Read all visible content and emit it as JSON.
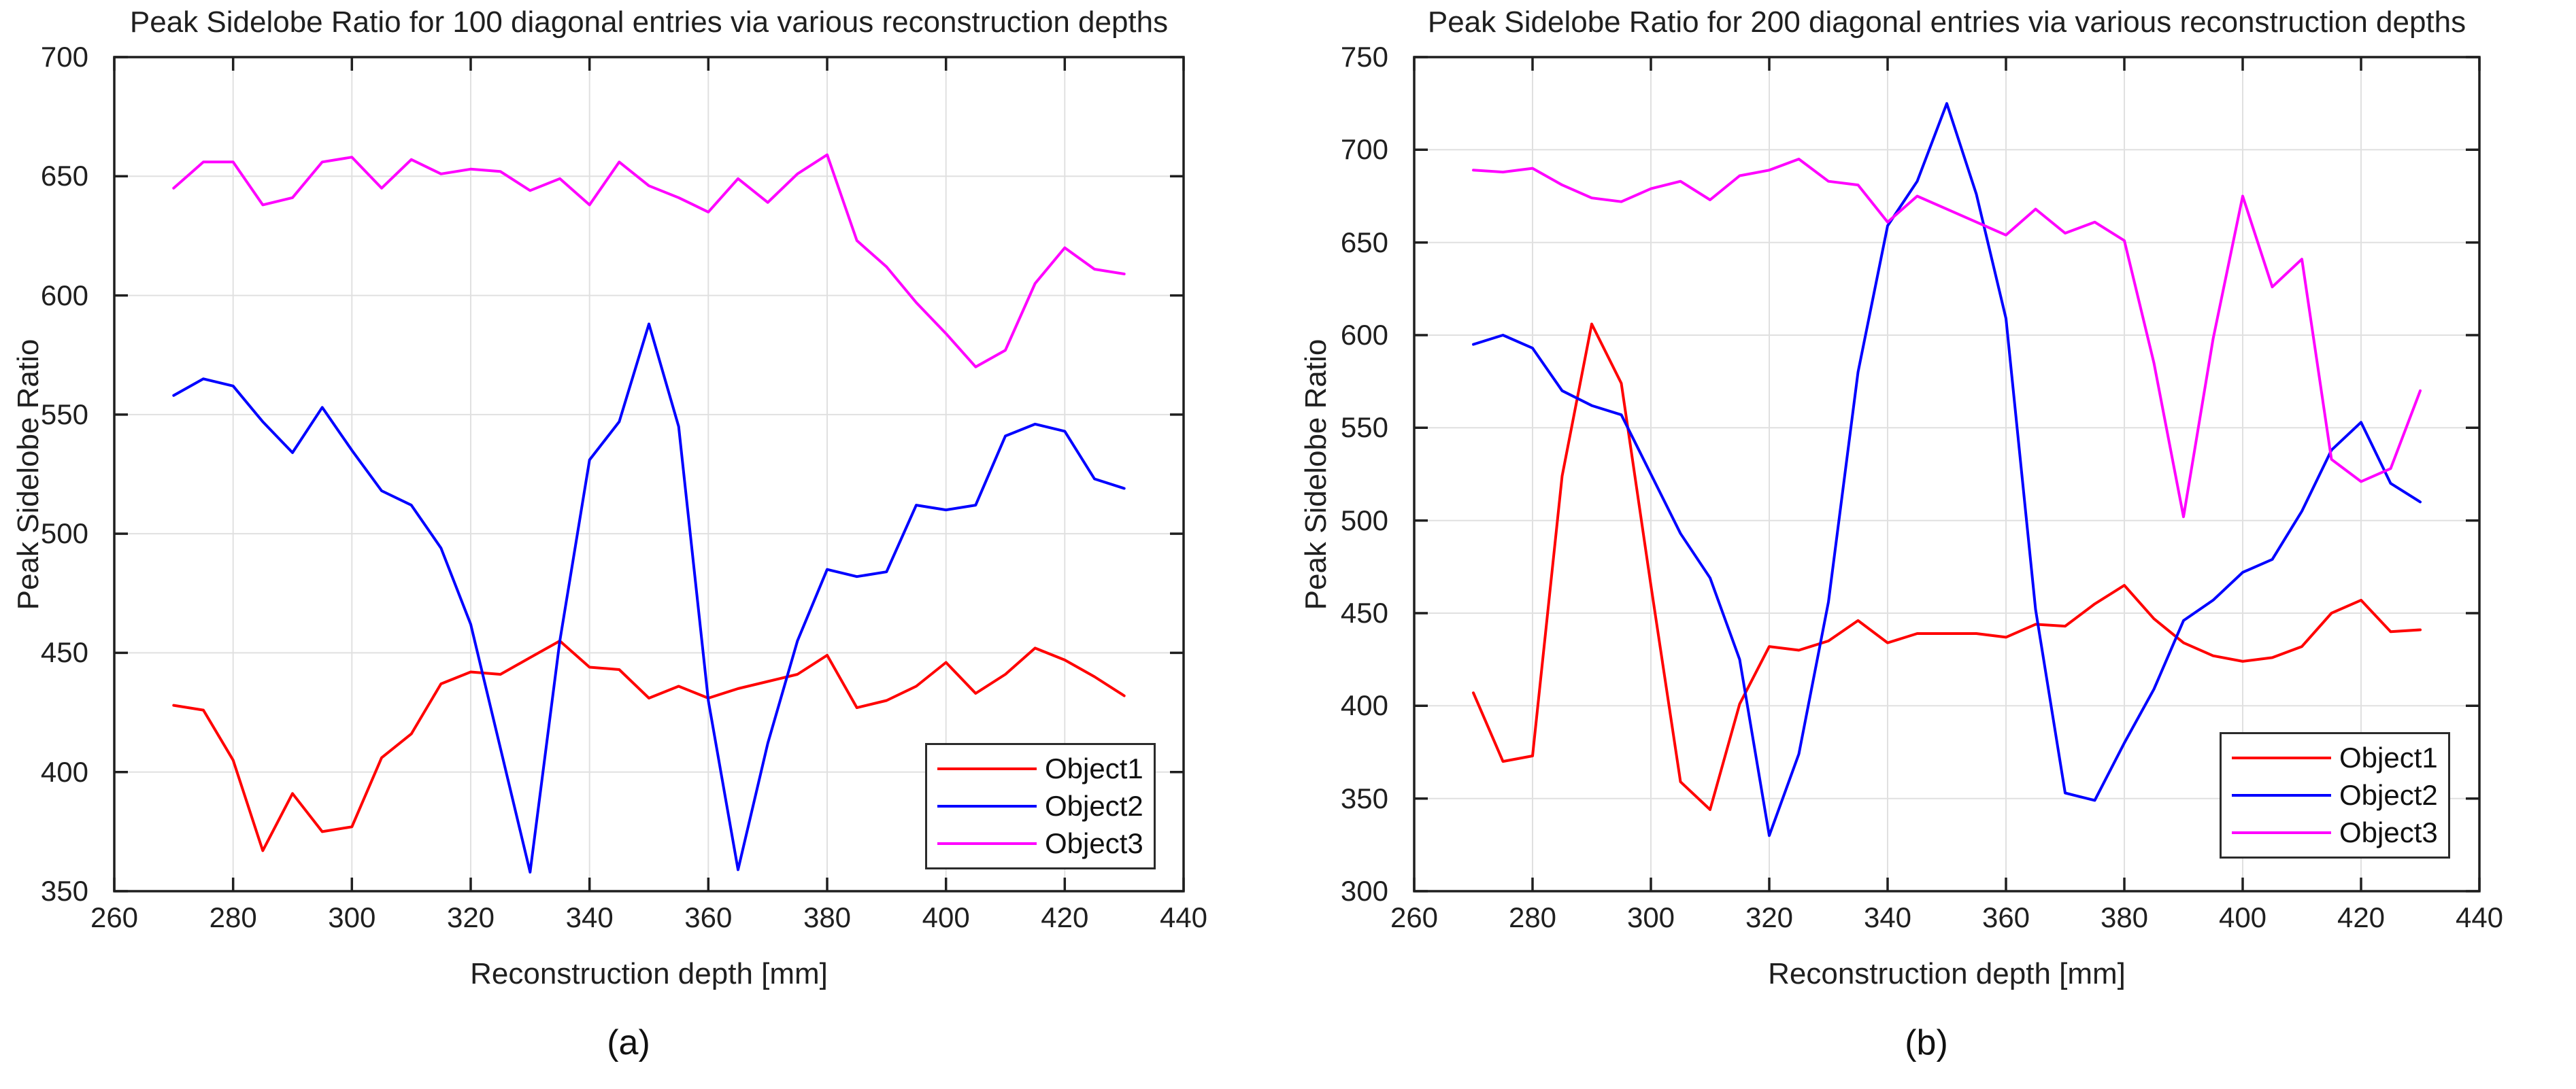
{
  "style": {
    "background": "#ffffff",
    "axis_color": "#1f1f1f",
    "grid_color": "#e0e0e0",
    "text_color": "#1f1f1f"
  },
  "chart_data": [
    {
      "type": "line",
      "title": "Peak Sidelobe Ratio for 100 diagonal entries via various reconstruction depths",
      "xlabel": "Reconstruction depth [mm]",
      "ylabel": "Peak Sidelobe Ratio",
      "caption": "(a)",
      "xlim": [
        260,
        440
      ],
      "ylim": [
        350,
        700
      ],
      "x_ticks": [
        260,
        280,
        300,
        320,
        340,
        360,
        380,
        400,
        420,
        440
      ],
      "y_ticks": [
        350,
        400,
        450,
        500,
        550,
        600,
        650,
        700
      ],
      "grid": true,
      "legend_position": "inside-bottom-right",
      "x": [
        270,
        275,
        280,
        285,
        290,
        295,
        300,
        305,
        310,
        315,
        320,
        325,
        330,
        335,
        340,
        345,
        350,
        355,
        360,
        365,
        370,
        375,
        380,
        385,
        390,
        395,
        400,
        405,
        410,
        415,
        420,
        425,
        430
      ],
      "series": [
        {
          "name": "Object1",
          "color": "#ff0000",
          "values": [
            428,
            426,
            405,
            367,
            391,
            375,
            377,
            406,
            416,
            437,
            442,
            441,
            448,
            455,
            444,
            443,
            431,
            436,
            431,
            435,
            438,
            441,
            449,
            427,
            430,
            436,
            446,
            433,
            441,
            452,
            447,
            440,
            432
          ]
        },
        {
          "name": "Object2",
          "color": "#0000ff",
          "values": [
            558,
            565,
            562,
            547,
            534,
            553,
            535,
            518,
            512,
            494,
            462,
            410,
            358,
            455,
            531,
            547,
            588,
            545,
            430,
            359,
            412,
            455,
            485,
            482,
            484,
            512,
            510,
            512,
            541,
            546,
            543,
            523,
            519
          ]
        },
        {
          "name": "Object3",
          "color": "#ff00ff",
          "values": [
            645,
            656,
            656,
            638,
            641,
            656,
            658,
            645,
            657,
            651,
            653,
            652,
            644,
            649,
            638,
            656,
            646,
            641,
            635,
            649,
            639,
            651,
            659,
            623,
            612,
            597,
            584,
            570,
            577,
            605,
            620,
            611,
            609
          ]
        }
      ]
    },
    {
      "type": "line",
      "title": "Peak Sidelobe Ratio for 200 diagonal entries via various reconstruction depths",
      "xlabel": "Reconstruction depth [mm]",
      "ylabel": "Peak Sidelobe Ratio",
      "caption": "(b)",
      "xlim": [
        260,
        440
      ],
      "ylim": [
        300,
        750
      ],
      "x_ticks": [
        260,
        280,
        300,
        320,
        340,
        360,
        380,
        400,
        420,
        440
      ],
      "y_ticks": [
        300,
        350,
        400,
        450,
        500,
        550,
        600,
        650,
        700,
        750
      ],
      "grid": true,
      "legend_position": "inside-bottom-right",
      "x": [
        270,
        275,
        280,
        285,
        290,
        295,
        300,
        305,
        310,
        315,
        320,
        325,
        330,
        335,
        340,
        345,
        350,
        355,
        360,
        365,
        370,
        375,
        380,
        385,
        390,
        395,
        400,
        405,
        410,
        415,
        420,
        425,
        430
      ],
      "series": [
        {
          "name": "Object1",
          "color": "#ff0000",
          "values": [
            407,
            370,
            373,
            524,
            606,
            574,
            465,
            359,
            344,
            401,
            432,
            430,
            435,
            446,
            434,
            439,
            439,
            439,
            437,
            444,
            443,
            455,
            465,
            447,
            434,
            427,
            424,
            426,
            432,
            450,
            457,
            440,
            441
          ]
        },
        {
          "name": "Object2",
          "color": "#0000ff",
          "values": [
            595,
            600,
            593,
            570,
            562,
            557,
            525,
            493,
            469,
            425,
            330,
            374,
            456,
            580,
            659,
            683,
            725,
            676,
            609,
            452,
            353,
            349,
            380,
            409,
            446,
            457,
            472,
            479,
            505,
            538,
            553,
            520,
            510
          ]
        },
        {
          "name": "Object3",
          "color": "#ff00ff",
          "values": [
            689,
            688,
            690,
            681,
            674,
            672,
            679,
            683,
            673,
            686,
            689,
            695,
            683,
            681,
            661,
            675,
            668,
            661,
            654,
            668,
            655,
            661,
            651,
            585,
            502,
            598,
            675,
            626,
            641,
            533,
            521,
            528,
            570
          ]
        }
      ]
    }
  ]
}
